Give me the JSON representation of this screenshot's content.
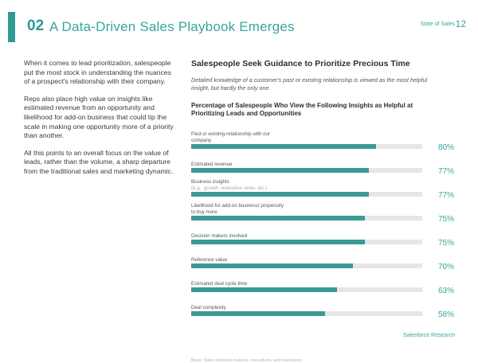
{
  "header": {
    "section_number": "02",
    "title": "A Data-Driven Sales Playbook Emerges",
    "running_head": "State of Sales",
    "page_number": "12"
  },
  "left_column": {
    "paragraphs": [
      "When it comes to lead prioritization, salespeople put the most stock in understanding the nuances of a prospect's relationship with their company.",
      "Reps also place high value on insights like estimated revenue from an opportunity and likelihood for add-on business that could tip the scale in making one opportunity more of a priority than another.",
      "All this points to an overall focus on the value of leads, rather than the volume, a sharp departure from the traditional sales and marketing dynamic."
    ]
  },
  "right_column": {
    "headline": "Salespeople Seek Guidance to Prioritize Precious Time",
    "intro": "Detailed knowledge of a customer's past or existing relationship is viewed as the most helpful insight, but hardly the only one."
  },
  "chart_data": {
    "type": "bar",
    "title": "Percentage of Salespeople Who View the Following Insights as Helpful at Prioritizing Leads and Opportunities",
    "categories": [
      "Past or existing relationship with our company",
      "Estimated revenue",
      "Business insights",
      "Likelihood for add-on business/ propensity to buy more",
      "Decision makers involved",
      "Reference value",
      "Estimated deal cycle time",
      "Deal complexity"
    ],
    "sublabels": [
      "",
      "",
      "(e.g., growth, executive news, etc.)",
      "",
      "",
      "",
      "",
      ""
    ],
    "values": [
      80,
      77,
      77,
      75,
      75,
      70,
      63,
      58
    ],
    "value_labels": [
      "80%",
      "77%",
      "77%",
      "75%",
      "75%",
      "70%",
      "63%",
      "58%"
    ],
    "ylim": [
      0,
      100
    ],
    "note": "Base: Sales decision-makers, executives, and managers.",
    "colors": {
      "bar": "#3a9b94",
      "track": "#e6e6e6"
    }
  },
  "footer": {
    "brand": "Salesforce Research"
  }
}
